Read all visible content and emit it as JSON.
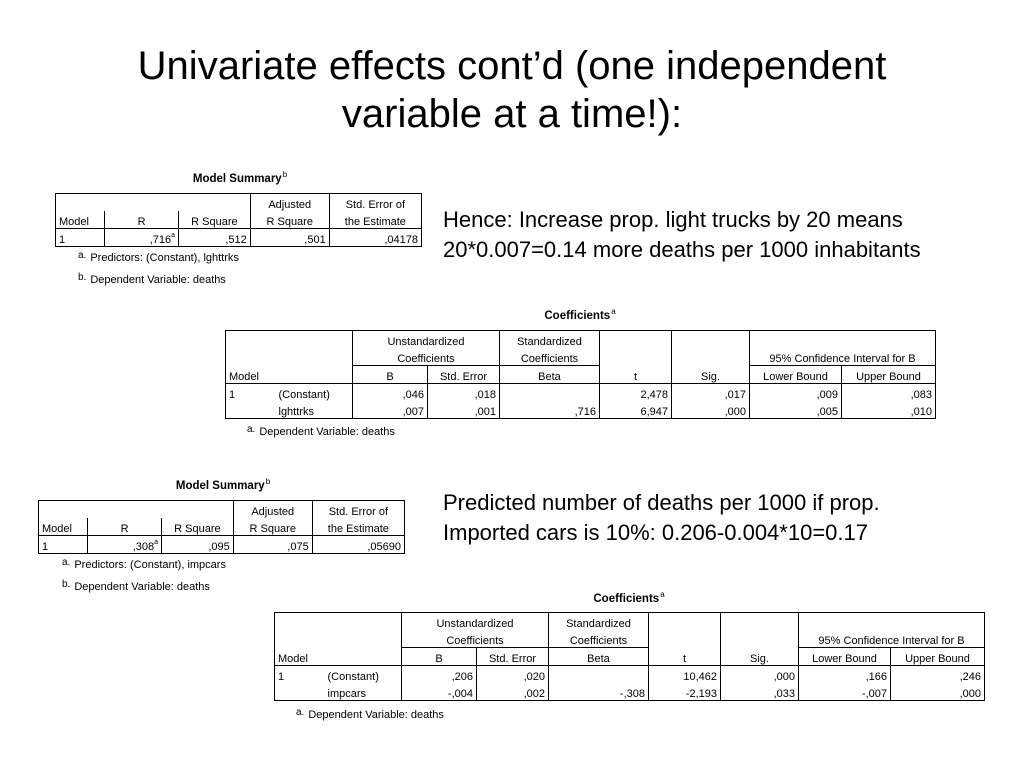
{
  "slide": {
    "title_line1": "Univariate effects cont’d (one independent",
    "title_line2": "variable at a time!):"
  },
  "notes": {
    "trucks_line1": "Hence: Increase prop. light trucks by 20 means",
    "trucks_line2": "20*0.007=0.14 more deaths per 1000 inhabitants",
    "cars_line1": "Predicted number of deaths per 1000 if prop.",
    "cars_line2": "Imported cars is 10%: 0.206-0.004*10=0.17"
  },
  "summary1": {
    "title": "Model Summary",
    "title_sup": "b",
    "h_adjusted": "Adjusted",
    "h_stderr1": "Std. Error of",
    "h_model": "Model",
    "h_r": "R",
    "h_rsq": "R Square",
    "h_rsq2": "R Square",
    "h_stderr2": "the Estimate",
    "model": "1",
    "r": ",716",
    "r_sup": "a",
    "rsq": ",512",
    "adj": ",501",
    "se": ",04178",
    "foot_a_mark": "a.",
    "foot_a": "Predictors: (Constant), lghttrks",
    "foot_b_mark": "b.",
    "foot_b": "Dependent Variable: deaths"
  },
  "coef1": {
    "title": "Coefficients",
    "title_sup": "a",
    "h_unstd1": "Unstandardized",
    "h_unstd2": "Coefficients",
    "h_std1": "Standardized",
    "h_std2": "Coefficients",
    "h_ci": "95% Confidence Interval for B",
    "h_model": "Model",
    "h_b": "B",
    "h_se": "Std. Error",
    "h_beta": "Beta",
    "h_t": "t",
    "h_sig": "Sig.",
    "h_lb": "Lower Bound",
    "h_ub": "Upper Bound",
    "row1": {
      "model": "1",
      "term": "(Constant)",
      "b": ",046",
      "se": ",018",
      "beta": "",
      "t": "2,478",
      "sig": ",017",
      "lb": ",009",
      "ub": ",083"
    },
    "row2": {
      "term": "lghttrks",
      "b": ",007",
      "se": ",001",
      "beta": ",716",
      "t": "6,947",
      "sig": ",000",
      "lb": ",005",
      "ub": ",010"
    },
    "foot_mark": "a.",
    "foot": "Dependent Variable: deaths"
  },
  "summary2": {
    "title": "Model Summary",
    "title_sup": "b",
    "h_adjusted": "Adjusted",
    "h_stderr1": "Std. Error of",
    "h_model": "Model",
    "h_r": "R",
    "h_rsq": "R Square",
    "h_rsq2": "R Square",
    "h_stderr2": "the Estimate",
    "model": "1",
    "r": ",308",
    "r_sup": "a",
    "rsq": ",095",
    "adj": ",075",
    "se": ",05690",
    "foot_a_mark": "a.",
    "foot_a": "Predictors: (Constant), impcars",
    "foot_b_mark": "b.",
    "foot_b": "Dependent Variable: deaths"
  },
  "coef2": {
    "title": "Coefficients",
    "title_sup": "a",
    "h_unstd1": "Unstandardized",
    "h_unstd2": "Coefficients",
    "h_std1": "Standardized",
    "h_std2": "Coefficients",
    "h_ci": "95% Confidence Interval for B",
    "h_model": "Model",
    "h_b": "B",
    "h_se": "Std. Error",
    "h_beta": "Beta",
    "h_t": "t",
    "h_sig": "Sig.",
    "h_lb": "Lower Bound",
    "h_ub": "Upper Bound",
    "row1": {
      "model": "1",
      "term": "(Constant)",
      "b": ",206",
      "se": ",020",
      "beta": "",
      "t": "10,462",
      "sig": ",000",
      "lb": ",166",
      "ub": ",246"
    },
    "row2": {
      "term": "impcars",
      "b": "-,004",
      "se": ",002",
      "beta": "-,308",
      "t": "-2,193",
      "sig": ",033",
      "lb": "-,007",
      "ub": ",000"
    },
    "foot_mark": "a.",
    "foot": "Dependent Variable: deaths"
  }
}
